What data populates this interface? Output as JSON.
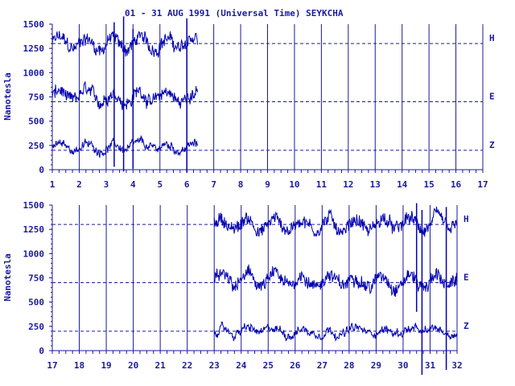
{
  "chart_data": [
    {
      "type": "line",
      "title": "01 - 31 AUG 1991 (Universal Time) SEYKCHA",
      "ylabel": "Nanotesla",
      "xlim": [
        1,
        17
      ],
      "ylim": [
        0,
        1500
      ],
      "x_ticks": [
        "1",
        "2",
        "3",
        "4",
        "5",
        "6",
        "7",
        "8",
        "9",
        "10",
        "11",
        "12",
        "13",
        "14",
        "15",
        "16",
        "17"
      ],
      "y_ticks": [
        "0",
        "250",
        "500",
        "750",
        "1000",
        "1250",
        "1500"
      ],
      "reference_lines": [
        {
          "name": "H",
          "value": 1300
        },
        {
          "name": "E",
          "value": 700
        },
        {
          "name": "Z",
          "value": 200
        }
      ],
      "series": [
        {
          "name": "H",
          "x_range": [
            1,
            6.4
          ],
          "mean": 1300
        },
        {
          "name": "E",
          "x_range": [
            1,
            6.4
          ],
          "mean": 750
        },
        {
          "name": "Z",
          "x_range": [
            1,
            6.4
          ],
          "mean": 230
        }
      ]
    },
    {
      "type": "line",
      "ylabel": "Nanotesla",
      "xlim": [
        17,
        32
      ],
      "ylim": [
        0,
        1500
      ],
      "x_ticks": [
        "17",
        "18",
        "19",
        "20",
        "21",
        "22",
        "23",
        "24",
        "25",
        "26",
        "27",
        "28",
        "29",
        "30",
        "31",
        "32"
      ],
      "y_ticks": [
        "0",
        "250",
        "500",
        "750",
        "1000",
        "1250",
        "1500"
      ],
      "reference_lines": [
        {
          "name": "H",
          "value": 1300
        },
        {
          "name": "E",
          "value": 700
        },
        {
          "name": "Z",
          "value": 200
        }
      ],
      "series": [
        {
          "name": "H",
          "x_range": [
            23,
            32
          ],
          "mean": 1300
        },
        {
          "name": "E",
          "x_range": [
            23,
            32
          ],
          "mean": 720
        },
        {
          "name": "Z",
          "x_range": [
            23,
            32
          ],
          "mean": 200
        }
      ]
    }
  ],
  "colors": {
    "trace": "#0000b0",
    "grid": "#1a1aa0",
    "text": "#1a1aa0",
    "background": "#ffffff"
  }
}
